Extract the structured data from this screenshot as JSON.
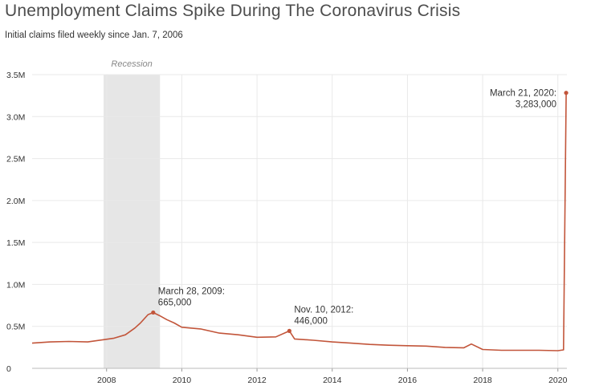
{
  "title": "Unemployment Claims Spike During The Coronavirus Crisis",
  "subtitle": "Initial claims filed weekly since Jan. 7, 2006",
  "colors": {
    "line": "#c2553a",
    "recession": "#e6e6e6",
    "grid": "#e9e9e9"
  },
  "chart_data": {
    "type": "line",
    "title": "Unemployment Claims Spike During The Coronavirus Crisis",
    "subtitle": "Initial claims filed weekly since Jan. 7, 2006",
    "xlabel": "",
    "ylabel": "",
    "xlim": [
      2006.02,
      2020.24
    ],
    "ylim": [
      0,
      3500000
    ],
    "grid": true,
    "x_ticks": [
      2008,
      2010,
      2012,
      2014,
      2016,
      2018,
      2020
    ],
    "x_tick_labels": [
      "2008",
      "2010",
      "2012",
      "2014",
      "2016",
      "2018",
      "2020"
    ],
    "y_ticks": [
      0,
      500000,
      1000000,
      1500000,
      2000000,
      2500000,
      3000000,
      3500000
    ],
    "y_tick_labels": [
      "0",
      "0.5M",
      "1.0M",
      "1.5M",
      "2.0M",
      "2.5M",
      "3.0M",
      "3.5M"
    ],
    "shaded_regions": [
      {
        "label": "Recession",
        "start": 2007.92,
        "end": 2009.42
      }
    ],
    "series": [
      {
        "x": [
          2006.02,
          2006.5,
          2007.0,
          2007.5,
          2007.9,
          2008.2,
          2008.5,
          2008.75,
          2008.9,
          2009.0,
          2009.1,
          2009.24,
          2009.4,
          2009.6,
          2009.8,
          2010.0,
          2010.5,
          2011.0,
          2011.5,
          2012.0,
          2012.5,
          2012.86,
          2013.0,
          2013.5,
          2014.0,
          2014.5,
          2015.0,
          2015.5,
          2016.0,
          2016.5,
          2017.0,
          2017.5,
          2017.7,
          2018.0,
          2018.5,
          2019.0,
          2019.5,
          2020.0,
          2020.15,
          2020.22
        ],
        "y": [
          300000,
          315000,
          320000,
          315000,
          340000,
          360000,
          400000,
          480000,
          540000,
          590000,
          640000,
          665000,
          630000,
          580000,
          540000,
          490000,
          470000,
          420000,
          400000,
          370000,
          375000,
          446000,
          350000,
          335000,
          315000,
          300000,
          285000,
          275000,
          270000,
          265000,
          250000,
          245000,
          290000,
          225000,
          215000,
          215000,
          215000,
          210000,
          220000,
          3283000
        ]
      }
    ],
    "annotations": [
      {
        "x": 2009.24,
        "y": 665000,
        "line1": "March 28, 2009:",
        "line2": "665,000"
      },
      {
        "x": 2012.86,
        "y": 446000,
        "line1": "Nov. 10, 2012:",
        "line2": "446,000"
      },
      {
        "x": 2020.22,
        "y": 3283000,
        "line1": "March 21, 2020:",
        "line2": "3,283,000"
      }
    ]
  }
}
